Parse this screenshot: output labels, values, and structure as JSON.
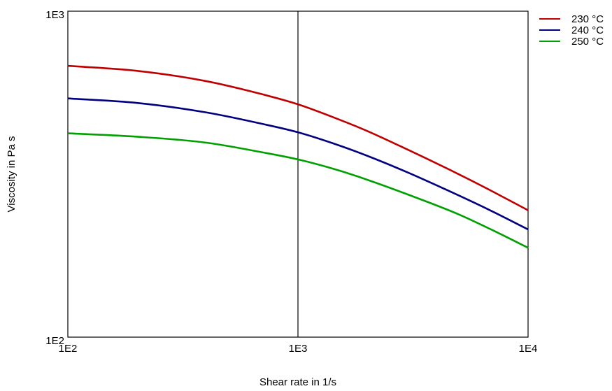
{
  "chart_data": {
    "type": "line",
    "xlabel": "Shear rate in 1/s",
    "ylabel": "Viscosity in Pa s",
    "x_scale": "log",
    "y_scale": "log",
    "xlim": [
      100,
      10000
    ],
    "ylim": [
      100,
      1000
    ],
    "x_ticks": [
      {
        "value": 100,
        "label": "1E2"
      },
      {
        "value": 1000,
        "label": "1E3"
      },
      {
        "value": 10000,
        "label": "1E4"
      }
    ],
    "y_ticks": [
      {
        "value": 100,
        "label": "1E2"
      },
      {
        "value": 1000,
        "label": "1E3"
      }
    ],
    "grid": {
      "x_major_at": [
        1000
      ],
      "y": false
    },
    "legend_position": "top-right, outside plot",
    "series": [
      {
        "name": "230 °C",
        "color": "#c00000",
        "x": [
          100,
          200,
          400,
          700,
          1000,
          1500,
          2000,
          3000,
          5000,
          7000,
          10000
        ],
        "y": [
          680,
          656,
          610,
          556,
          518,
          466,
          429,
          376,
          316,
          280,
          245
        ]
      },
      {
        "name": "240 °C",
        "color": "#000080",
        "x": [
          100,
          200,
          400,
          700,
          1000,
          1500,
          2000,
          3000,
          5000,
          7000,
          10000
        ],
        "y": [
          540,
          523,
          489,
          451,
          425,
          388,
          360,
          320,
          272,
          243,
          214
        ]
      },
      {
        "name": "250 °C",
        "color": "#00a000",
        "x": [
          100,
          200,
          400,
          700,
          1000,
          1500,
          2000,
          3000,
          5000,
          7000,
          10000
        ],
        "y": [
          422,
          412,
          395,
          369,
          351,
          325,
          304,
          274,
          238,
          213,
          188
        ]
      }
    ]
  }
}
